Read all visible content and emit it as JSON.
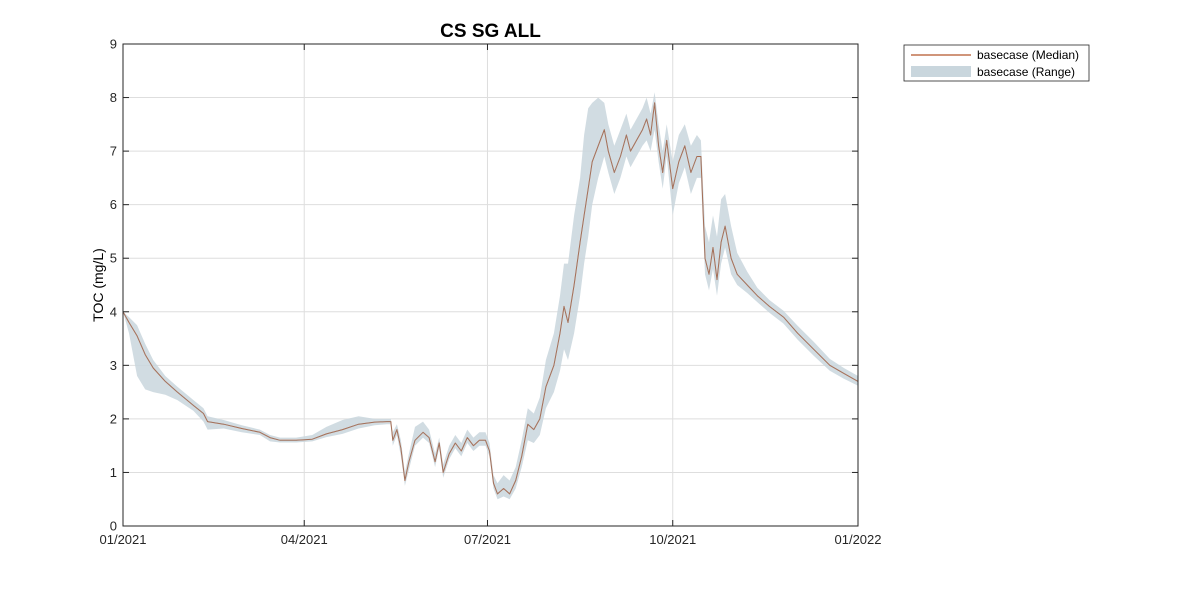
{
  "chart_data": {
    "type": "area",
    "title": "CS SG ALL",
    "xlabel": "",
    "ylabel": "TOC (mg/L)",
    "ylim": [
      0,
      9
    ],
    "xlim": [
      "2021-01-01",
      "2022-01-01"
    ],
    "x_ticks": [
      "2021-01-01",
      "2021-04-01",
      "2021-07-01",
      "2021-10-01",
      "2022-01-01"
    ],
    "x_tick_labels": [
      "01/2021",
      "04/2021",
      "07/2021",
      "10/2021",
      "01/2022"
    ],
    "y_ticks": [
      0,
      1,
      2,
      3,
      4,
      5,
      6,
      7,
      8,
      9
    ],
    "y_tick_labels": [
      "0",
      "1",
      "2",
      "3",
      "4",
      "5",
      "6",
      "7",
      "8",
      "9"
    ],
    "grid": true,
    "legend_position": "outside-top-right",
    "colors": {
      "median": "#b5562a",
      "range": "#c9d6dd"
    },
    "series": [
      {
        "name": "basecase (Median)",
        "kind": "line",
        "points": [
          [
            "2021-01-01",
            4.0
          ],
          [
            "2021-01-04",
            3.8
          ],
          [
            "2021-01-08",
            3.55
          ],
          [
            "2021-01-12",
            3.2
          ],
          [
            "2021-01-16",
            2.95
          ],
          [
            "2021-01-22",
            2.7
          ],
          [
            "2021-01-28",
            2.5
          ],
          [
            "2021-02-05",
            2.25
          ],
          [
            "2021-02-10",
            2.1
          ],
          [
            "2021-02-12",
            1.95
          ],
          [
            "2021-02-20",
            1.9
          ],
          [
            "2021-03-01",
            1.82
          ],
          [
            "2021-03-10",
            1.75
          ],
          [
            "2021-03-15",
            1.65
          ],
          [
            "2021-03-20",
            1.6
          ],
          [
            "2021-03-28",
            1.6
          ],
          [
            "2021-04-05",
            1.62
          ],
          [
            "2021-04-12",
            1.72
          ],
          [
            "2021-04-20",
            1.8
          ],
          [
            "2021-04-28",
            1.9
          ],
          [
            "2021-05-06",
            1.94
          ],
          [
            "2021-05-12",
            1.95
          ],
          [
            "2021-05-14",
            1.95
          ],
          [
            "2021-05-15",
            1.6
          ],
          [
            "2021-05-17",
            1.8
          ],
          [
            "2021-05-19",
            1.45
          ],
          [
            "2021-05-21",
            0.85
          ],
          [
            "2021-05-23",
            1.2
          ],
          [
            "2021-05-26",
            1.6
          ],
          [
            "2021-05-30",
            1.75
          ],
          [
            "2021-06-02",
            1.65
          ],
          [
            "2021-06-05",
            1.2
          ],
          [
            "2021-06-07",
            1.55
          ],
          [
            "2021-06-09",
            1.0
          ],
          [
            "2021-06-12",
            1.35
          ],
          [
            "2021-06-15",
            1.55
          ],
          [
            "2021-06-18",
            1.4
          ],
          [
            "2021-06-21",
            1.65
          ],
          [
            "2021-06-24",
            1.5
          ],
          [
            "2021-06-27",
            1.6
          ],
          [
            "2021-06-30",
            1.6
          ],
          [
            "2021-07-02",
            1.4
          ],
          [
            "2021-07-04",
            0.8
          ],
          [
            "2021-07-06",
            0.6
          ],
          [
            "2021-07-09",
            0.7
          ],
          [
            "2021-07-12",
            0.6
          ],
          [
            "2021-07-15",
            0.85
          ],
          [
            "2021-07-18",
            1.3
          ],
          [
            "2021-07-21",
            1.9
          ],
          [
            "2021-07-24",
            1.8
          ],
          [
            "2021-07-27",
            2.0
          ],
          [
            "2021-07-30",
            2.6
          ],
          [
            "2021-08-03",
            3.0
          ],
          [
            "2021-08-06",
            3.6
          ],
          [
            "2021-08-08",
            4.1
          ],
          [
            "2021-08-10",
            3.8
          ],
          [
            "2021-08-13",
            4.5
          ],
          [
            "2021-08-16",
            5.3
          ],
          [
            "2021-08-18",
            5.8
          ],
          [
            "2021-08-20",
            6.3
          ],
          [
            "2021-08-22",
            6.8
          ],
          [
            "2021-08-25",
            7.1
          ],
          [
            "2021-08-28",
            7.4
          ],
          [
            "2021-08-30",
            7.0
          ],
          [
            "2021-09-02",
            6.6
          ],
          [
            "2021-09-05",
            6.9
          ],
          [
            "2021-09-08",
            7.3
          ],
          [
            "2021-09-10",
            7.0
          ],
          [
            "2021-09-13",
            7.2
          ],
          [
            "2021-09-16",
            7.4
          ],
          [
            "2021-09-18",
            7.6
          ],
          [
            "2021-09-20",
            7.3
          ],
          [
            "2021-09-22",
            7.9
          ],
          [
            "2021-09-24",
            7.1
          ],
          [
            "2021-09-26",
            6.6
          ],
          [
            "2021-09-28",
            7.2
          ],
          [
            "2021-10-01",
            6.3
          ],
          [
            "2021-10-04",
            6.8
          ],
          [
            "2021-10-07",
            7.1
          ],
          [
            "2021-10-10",
            6.6
          ],
          [
            "2021-10-13",
            6.9
          ],
          [
            "2021-10-15",
            6.9
          ],
          [
            "2021-10-17",
            5.0
          ],
          [
            "2021-10-19",
            4.7
          ],
          [
            "2021-10-21",
            5.2
          ],
          [
            "2021-10-23",
            4.6
          ],
          [
            "2021-10-25",
            5.3
          ],
          [
            "2021-10-27",
            5.6
          ],
          [
            "2021-10-30",
            5.0
          ],
          [
            "2021-11-02",
            4.7
          ],
          [
            "2021-11-07",
            4.5
          ],
          [
            "2021-11-12",
            4.3
          ],
          [
            "2021-11-18",
            4.1
          ],
          [
            "2021-11-25",
            3.9
          ],
          [
            "2021-12-02",
            3.6
          ],
          [
            "2021-12-10",
            3.3
          ],
          [
            "2021-12-18",
            3.0
          ],
          [
            "2021-12-25",
            2.85
          ],
          [
            "2022-01-01",
            2.7
          ]
        ]
      },
      {
        "name": "basecase (Range)",
        "kind": "band",
        "points": [
          [
            "2021-01-01",
            4.0,
            4.0
          ],
          [
            "2021-01-04",
            3.6,
            3.9
          ],
          [
            "2021-01-08",
            2.8,
            3.75
          ],
          [
            "2021-01-12",
            2.55,
            3.4
          ],
          [
            "2021-01-16",
            2.5,
            3.1
          ],
          [
            "2021-01-22",
            2.45,
            2.8
          ],
          [
            "2021-01-28",
            2.35,
            2.6
          ],
          [
            "2021-02-05",
            2.15,
            2.35
          ],
          [
            "2021-02-10",
            1.95,
            2.2
          ],
          [
            "2021-02-12",
            1.8,
            2.05
          ],
          [
            "2021-02-20",
            1.82,
            1.98
          ],
          [
            "2021-03-01",
            1.75,
            1.88
          ],
          [
            "2021-03-10",
            1.7,
            1.8
          ],
          [
            "2021-03-15",
            1.58,
            1.7
          ],
          [
            "2021-03-20",
            1.56,
            1.65
          ],
          [
            "2021-03-28",
            1.56,
            1.65
          ],
          [
            "2021-04-05",
            1.58,
            1.7
          ],
          [
            "2021-04-12",
            1.66,
            1.85
          ],
          [
            "2021-04-20",
            1.72,
            1.98
          ],
          [
            "2021-04-28",
            1.82,
            2.05
          ],
          [
            "2021-05-06",
            1.88,
            2.0
          ],
          [
            "2021-05-12",
            1.9,
            2.0
          ],
          [
            "2021-05-14",
            1.9,
            2.0
          ],
          [
            "2021-05-15",
            1.5,
            1.75
          ],
          [
            "2021-05-17",
            1.7,
            1.9
          ],
          [
            "2021-05-19",
            1.3,
            1.6
          ],
          [
            "2021-05-21",
            0.75,
            1.0
          ],
          [
            "2021-05-23",
            1.05,
            1.35
          ],
          [
            "2021-05-26",
            1.5,
            1.85
          ],
          [
            "2021-05-30",
            1.65,
            1.95
          ],
          [
            "2021-06-02",
            1.55,
            1.8
          ],
          [
            "2021-06-05",
            1.1,
            1.35
          ],
          [
            "2021-06-07",
            1.45,
            1.65
          ],
          [
            "2021-06-09",
            0.9,
            1.15
          ],
          [
            "2021-06-12",
            1.25,
            1.5
          ],
          [
            "2021-06-15",
            1.45,
            1.7
          ],
          [
            "2021-06-18",
            1.3,
            1.55
          ],
          [
            "2021-06-21",
            1.55,
            1.8
          ],
          [
            "2021-06-24",
            1.4,
            1.65
          ],
          [
            "2021-06-27",
            1.5,
            1.75
          ],
          [
            "2021-06-30",
            1.5,
            1.75
          ],
          [
            "2021-07-02",
            1.3,
            1.55
          ],
          [
            "2021-07-04",
            0.7,
            0.95
          ],
          [
            "2021-07-06",
            0.5,
            0.8
          ],
          [
            "2021-07-09",
            0.55,
            0.95
          ],
          [
            "2021-07-12",
            0.5,
            0.85
          ],
          [
            "2021-07-15",
            0.7,
            1.1
          ],
          [
            "2021-07-18",
            1.1,
            1.6
          ],
          [
            "2021-07-21",
            1.6,
            2.2
          ],
          [
            "2021-07-24",
            1.55,
            2.1
          ],
          [
            "2021-07-27",
            1.7,
            2.4
          ],
          [
            "2021-07-30",
            2.2,
            3.1
          ],
          [
            "2021-08-03",
            2.5,
            3.6
          ],
          [
            "2021-08-06",
            2.9,
            4.3
          ],
          [
            "2021-08-08",
            3.3,
            4.9
          ],
          [
            "2021-08-10",
            3.1,
            4.9
          ],
          [
            "2021-08-13",
            3.6,
            5.8
          ],
          [
            "2021-08-16",
            4.3,
            6.5
          ],
          [
            "2021-08-18",
            4.9,
            7.3
          ],
          [
            "2021-08-20",
            5.4,
            7.8
          ],
          [
            "2021-08-22",
            6.0,
            7.9
          ],
          [
            "2021-08-25",
            6.5,
            8.0
          ],
          [
            "2021-08-28",
            6.9,
            7.9
          ],
          [
            "2021-08-30",
            6.6,
            7.5
          ],
          [
            "2021-09-02",
            6.2,
            7.1
          ],
          [
            "2021-09-05",
            6.5,
            7.4
          ],
          [
            "2021-09-08",
            6.9,
            7.7
          ],
          [
            "2021-09-10",
            6.7,
            7.4
          ],
          [
            "2021-09-13",
            6.9,
            7.6
          ],
          [
            "2021-09-16",
            7.1,
            7.8
          ],
          [
            "2021-09-18",
            7.2,
            8.0
          ],
          [
            "2021-09-20",
            7.0,
            7.7
          ],
          [
            "2021-09-22",
            7.4,
            8.1
          ],
          [
            "2021-09-24",
            6.8,
            7.5
          ],
          [
            "2021-09-26",
            6.3,
            7.0
          ],
          [
            "2021-09-28",
            6.9,
            7.5
          ],
          [
            "2021-10-01",
            5.8,
            6.8
          ],
          [
            "2021-10-04",
            6.4,
            7.3
          ],
          [
            "2021-10-07",
            6.7,
            7.5
          ],
          [
            "2021-10-10",
            6.2,
            7.1
          ],
          [
            "2021-10-13",
            6.5,
            7.3
          ],
          [
            "2021-10-15",
            6.5,
            7.2
          ],
          [
            "2021-10-17",
            4.7,
            5.6
          ],
          [
            "2021-10-19",
            4.4,
            5.3
          ],
          [
            "2021-10-21",
            4.8,
            5.8
          ],
          [
            "2021-10-23",
            4.3,
            5.4
          ],
          [
            "2021-10-25",
            4.9,
            6.1
          ],
          [
            "2021-10-27",
            5.2,
            6.2
          ],
          [
            "2021-10-30",
            4.7,
            5.6
          ],
          [
            "2021-11-02",
            4.5,
            5.1
          ],
          [
            "2021-11-07",
            4.35,
            4.75
          ],
          [
            "2021-11-12",
            4.18,
            4.45
          ],
          [
            "2021-11-18",
            3.98,
            4.22
          ],
          [
            "2021-11-25",
            3.78,
            4.02
          ],
          [
            "2021-12-02",
            3.48,
            3.74
          ],
          [
            "2021-12-10",
            3.18,
            3.44
          ],
          [
            "2021-12-18",
            2.9,
            3.12
          ],
          [
            "2021-12-25",
            2.75,
            2.95
          ],
          [
            "2022-01-01",
            2.62,
            2.8
          ]
        ]
      }
    ]
  }
}
